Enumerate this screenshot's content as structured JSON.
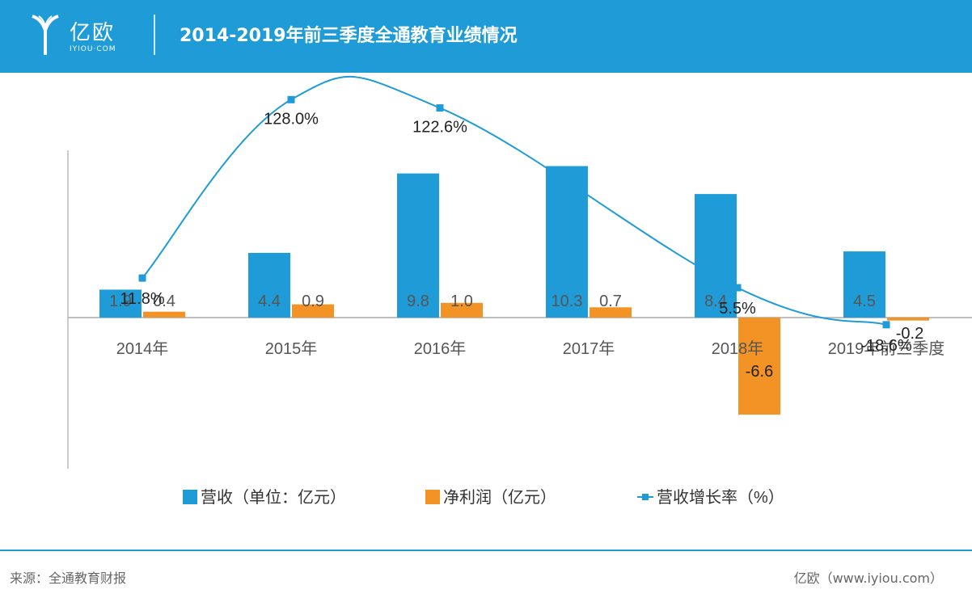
{
  "brand": {
    "name_cn": "亿欧",
    "name_en": "IYIOU·COM",
    "color": "#1f9bd7"
  },
  "header": {
    "title": "2014-2019年前三季度全通教育业绩情况"
  },
  "footer": {
    "source": "来源：全通教育财报",
    "credit": "亿欧（www.iyiou.com）"
  },
  "chart_data": {
    "type": "bar",
    "categories": [
      "2014年",
      "2015年",
      "2016年",
      "2017年",
      "2018年",
      "2019年前三季度"
    ],
    "series": [
      {
        "name": "营收（单位：亿元）",
        "kind": "bar",
        "color": "#1f9bd7",
        "values": [
          1.9,
          4.4,
          9.8,
          10.3,
          8.4,
          4.5
        ],
        "labels": [
          "1.9",
          "4.4",
          "9.8",
          "10.3",
          "8.4",
          "4.5"
        ]
      },
      {
        "name": "净利润（亿元）",
        "kind": "bar",
        "color": "#f39325",
        "values": [
          0.4,
          0.9,
          1.0,
          0.7,
          -6.6,
          -0.2
        ],
        "labels": [
          "0.4",
          "0.9",
          "1.0",
          "0.7",
          "-6.6",
          "-0.2"
        ]
      },
      {
        "name": "营收增长率（%）",
        "kind": "line",
        "color": "#1f9bd7",
        "values": [
          11.8,
          128.0,
          122.6,
          null,
          5.5,
          -18.6
        ],
        "labels": [
          "11.8%",
          "128.0%",
          "122.6%",
          "",
          "5.5%",
          "-18.6%"
        ]
      }
    ],
    "legend": "bottom",
    "grid": false
  }
}
